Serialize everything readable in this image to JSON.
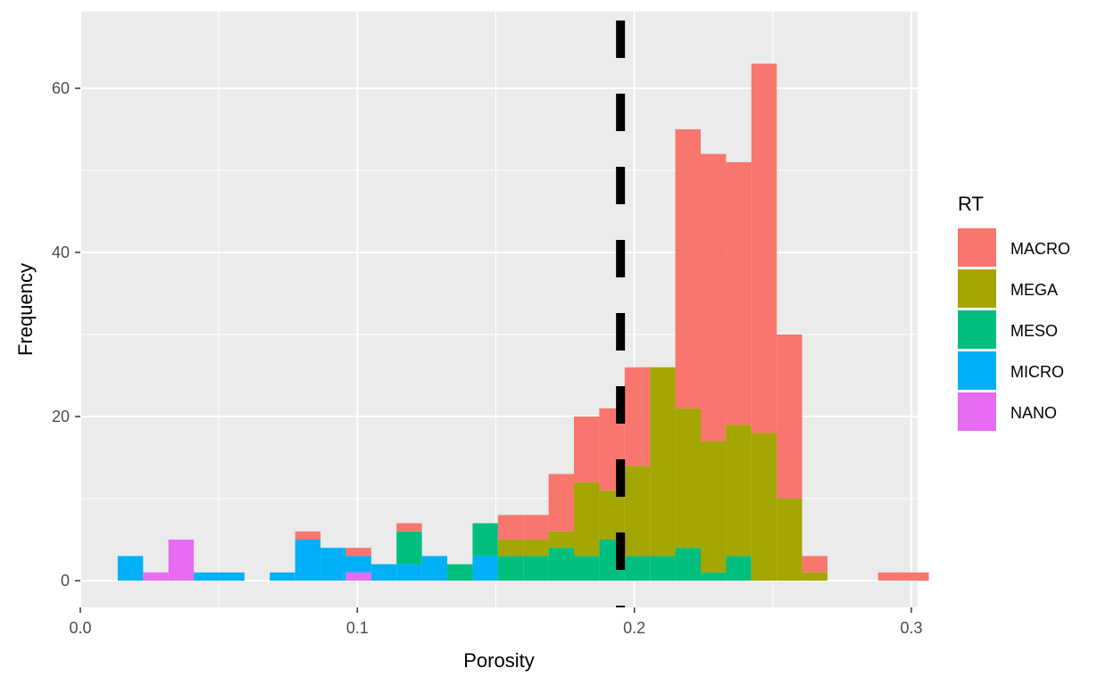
{
  "chart_data": {
    "type": "bar",
    "subtype": "stacked-histogram",
    "xlabel": "Porosity",
    "ylabel": "Frequency",
    "xlim": [
      0,
      0.3
    ],
    "ylim": [
      0,
      68
    ],
    "x_ticks": [
      "0.0",
      "0.1",
      "0.2",
      "0.3"
    ],
    "x_tick_values": [
      0,
      0.1,
      0.2,
      0.3
    ],
    "y_ticks": [
      "0",
      "20",
      "40",
      "60"
    ],
    "y_tick_values": [
      0,
      20,
      40,
      60
    ],
    "grid": true,
    "legend": {
      "title": "RT",
      "position": "right"
    },
    "vline": {
      "x": 0.195,
      "style": "dashed",
      "color": "#000000"
    },
    "bin_start": 0.0135,
    "bin_width": 0.00915,
    "series": [
      {
        "name": "MACRO",
        "color": "#F8766D",
        "values": [
          0,
          0,
          0,
          0,
          0,
          0,
          0,
          1,
          0,
          1,
          0,
          1,
          0,
          0,
          0,
          3,
          3,
          7,
          8,
          10,
          12,
          0,
          34,
          35,
          32,
          45,
          20,
          2,
          0,
          0,
          1,
          1
        ]
      },
      {
        "name": "MEGA",
        "color": "#A3A500",
        "values": [
          0,
          0,
          0,
          0,
          0,
          0,
          0,
          0,
          0,
          0,
          0,
          0,
          0,
          0,
          0,
          2,
          2,
          2,
          9,
          6,
          11,
          23,
          17,
          16,
          16,
          18,
          10,
          1,
          0,
          0,
          0,
          0
        ]
      },
      {
        "name": "MESO",
        "color": "#00BF7D",
        "values": [
          0,
          0,
          0,
          0,
          0,
          0,
          0,
          0,
          0,
          0,
          0,
          4,
          0,
          2,
          4,
          3,
          3,
          4,
          3,
          5,
          3,
          3,
          4,
          1,
          3,
          0,
          0,
          0,
          0,
          0,
          0,
          0
        ]
      },
      {
        "name": "MICRO",
        "color": "#00B0F6",
        "values": [
          3,
          0,
          0,
          1,
          1,
          0,
          1,
          5,
          4,
          2,
          2,
          2,
          3,
          0,
          3,
          0,
          0,
          0,
          0,
          0,
          0,
          0,
          0,
          0,
          0,
          0,
          0,
          0,
          0,
          0,
          0,
          0
        ]
      },
      {
        "name": "NANO",
        "color": "#E76BF3",
        "values": [
          0,
          1,
          5,
          0,
          0,
          0,
          0,
          0,
          0,
          1,
          0,
          0,
          0,
          0,
          0,
          0,
          0,
          0,
          0,
          0,
          0,
          0,
          0,
          0,
          0,
          0,
          0,
          0,
          0,
          0,
          0,
          0
        ]
      }
    ]
  }
}
